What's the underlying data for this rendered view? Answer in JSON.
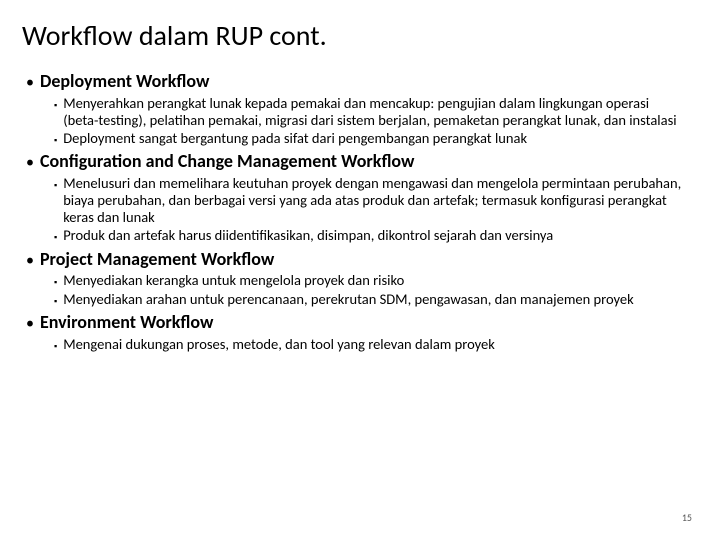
{
  "title": "Workflow dalam RUP cont.",
  "sections": [
    {
      "heading": "Deployment Workflow",
      "items": [
        "Menyerahkan perangkat lunak kepada pemakai dan mencakup: pengujian dalam lingkungan operasi (beta-testing), pelatihan pemakai, migrasi dari sistem berjalan, pemaketan perangkat lunak, dan instalasi",
        "Deployment sangat bergantung pada sifat dari pengembangan perangkat lunak"
      ]
    },
    {
      "heading": "Configuration and Change Management Workflow",
      "items": [
        "Menelusuri dan memelihara keutuhan proyek dengan mengawasi dan mengelola permintaan perubahan, biaya perubahan, dan berbagai versi yang ada atas produk dan artefak; termasuk konfigurasi perangkat keras dan lunak",
        "Produk dan artefak harus diidentifikasikan, disimpan, dikontrol sejarah dan versinya"
      ]
    },
    {
      "heading": "Project Management Workflow",
      "items": [
        "Menyediakan kerangka untuk mengelola proyek dan risiko",
        "Menyediakan arahan untuk perencanaan, perekrutan SDM, pengawasan, dan manajemen proyek"
      ]
    },
    {
      "heading": "Environment Workflow",
      "items": [
        "Mengenai dukungan proses, metode, dan tool yang relevan dalam proyek"
      ]
    }
  ],
  "page_number": "15"
}
